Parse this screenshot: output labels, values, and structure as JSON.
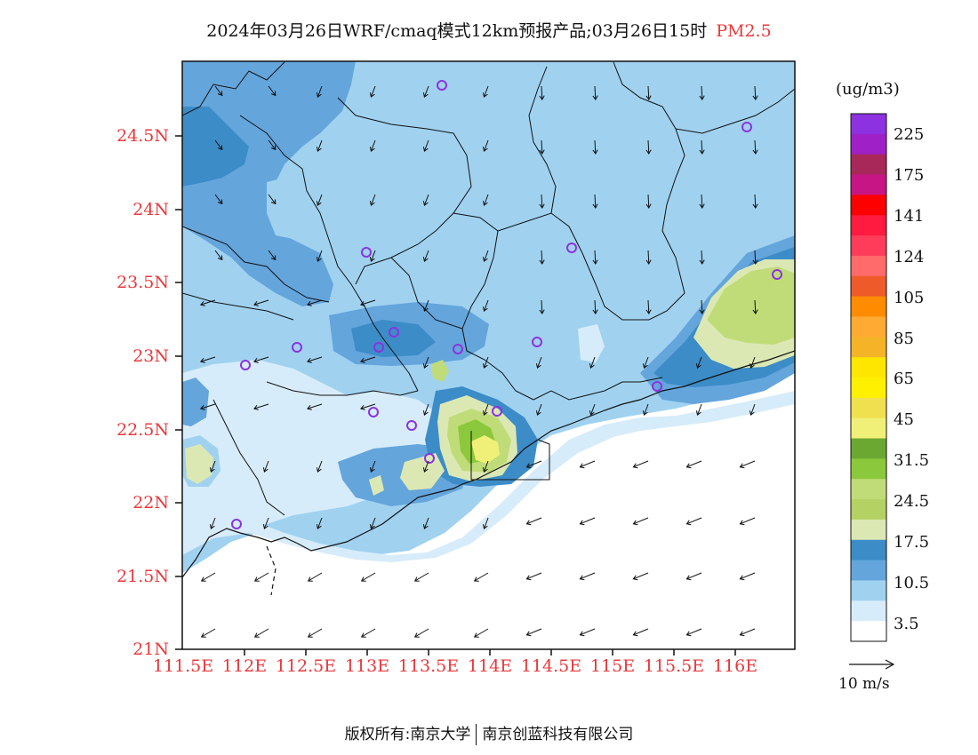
{
  "title": {
    "main": "2024年03月26日WRF/cmaq模式12km预报产品;03月26日15时",
    "pollutant": "PM2.5"
  },
  "axes": {
    "lat_labels": [
      "24.5N",
      "24N",
      "23.5N",
      "23N",
      "22.5N",
      "22N",
      "21.5N",
      "21N"
    ],
    "lon_labels": [
      "111.5E",
      "112E",
      "112.5E",
      "113E",
      "113.5E",
      "114E",
      "114.5E",
      "115E",
      "115.5E",
      "116E"
    ],
    "label_color": "#e8393c"
  },
  "colorbar": {
    "unit": "(ug/m3)",
    "labels": [
      "225",
      "175",
      "141",
      "124",
      "105",
      "85",
      "65",
      "45",
      "31.5",
      "24.5",
      "17.5",
      "10.5",
      "3.5"
    ],
    "colors": [
      "#8c32e0",
      "#a020c8",
      "#a8285a",
      "#c71585",
      "#ff0000",
      "#ff1a40",
      "#ff3c5a",
      "#ff6a6a",
      "#ee5a2a",
      "#ff8c00",
      "#ffaa33",
      "#f5b428",
      "#ffe600",
      "#fff000",
      "#f0e050",
      "#f0f078",
      "#6aa832",
      "#8cc83c",
      "#c0dc78",
      "#b4d264",
      "#dce8b4",
      "#3c8cc8",
      "#64a5dc",
      "#a0d2f0",
      "#d7ecfa",
      "#ffffff"
    ]
  },
  "vector_scale": {
    "label": "10 m/s"
  },
  "footer": {
    "left": "版权所有:南京大学",
    "right": "南京创蓝科技有限公司"
  },
  "map_legend_colors": {
    "ocean_white": "#ffffff",
    "very_light": "#d7ecfa",
    "light": "#a0d2f0",
    "medium": "#64a5dc",
    "dark": "#3c8cc8",
    "pale_green": "#dce8b4",
    "light_green": "#c0dc78",
    "green": "#8cc83c",
    "yellow": "#f0f078"
  }
}
